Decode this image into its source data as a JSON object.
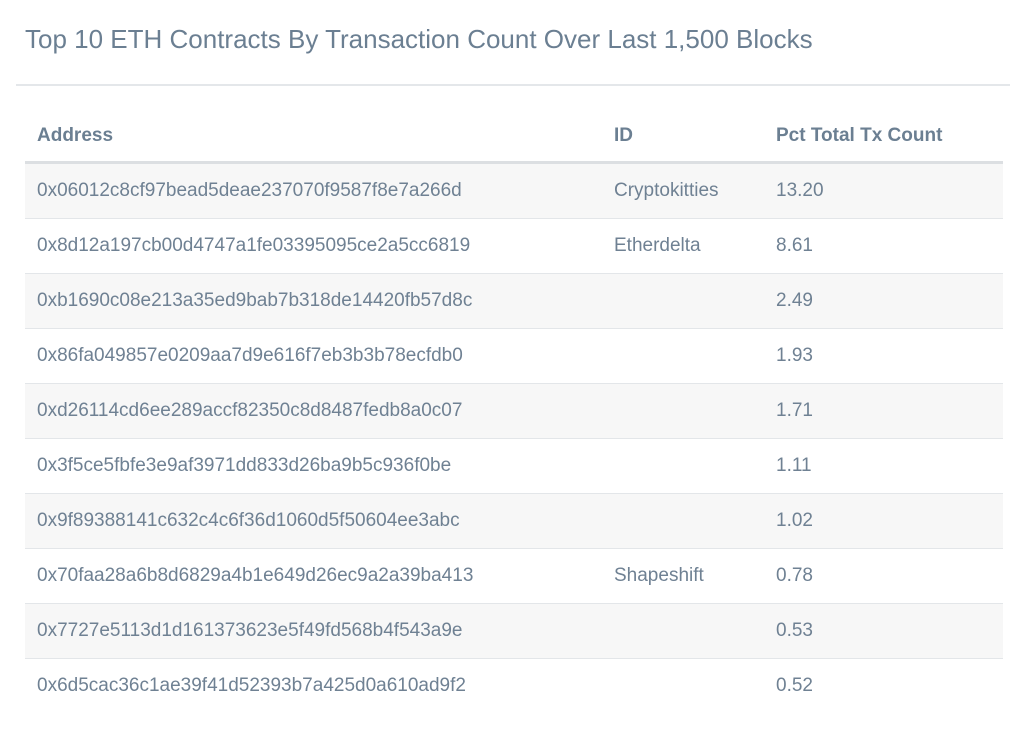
{
  "chart_data": {
    "type": "table",
    "title": "Top 10 ETH Contracts By Transaction Count Over Last 1,500 Blocks",
    "columns": [
      "Address",
      "ID",
      "Pct Total Tx Count"
    ],
    "rows": [
      [
        "0x06012c8cf97bead5deae237070f9587f8e7a266d",
        "Cryptokitties",
        "13.20"
      ],
      [
        "0x8d12a197cb00d4747a1fe03395095ce2a5cc6819",
        "Etherdelta",
        "8.61"
      ],
      [
        "0xb1690c08e213a35ed9bab7b318de14420fb57d8c",
        "",
        "2.49"
      ],
      [
        "0x86fa049857e0209aa7d9e616f7eb3b3b78ecfdb0",
        "",
        "1.93"
      ],
      [
        "0xd26114cd6ee289accf82350c8d8487fedb8a0c07",
        "",
        "1.71"
      ],
      [
        "0x3f5ce5fbfe3e9af3971dd833d26ba9b5c936f0be",
        "",
        "1.11"
      ],
      [
        "0x9f89388141c632c4c6f36d1060d5f50604ee3abc",
        "",
        "1.02"
      ],
      [
        "0x70faa28a6b8d6829a4b1e649d26ec9a2a39ba413",
        "Shapeshift",
        "0.78"
      ],
      [
        "0x7727e5113d1d161373623e5f49fd568b4f543a9e",
        "",
        "0.53"
      ],
      [
        "0x6d5cac36c1ae39f41d52393b7a425d0a610ad9f2",
        "",
        "0.52"
      ]
    ]
  },
  "colors": {
    "text": "#6f8193",
    "header_text": "#6b7f92",
    "stripe": "#f7f7f7",
    "rule": "#e3e6e9"
  }
}
